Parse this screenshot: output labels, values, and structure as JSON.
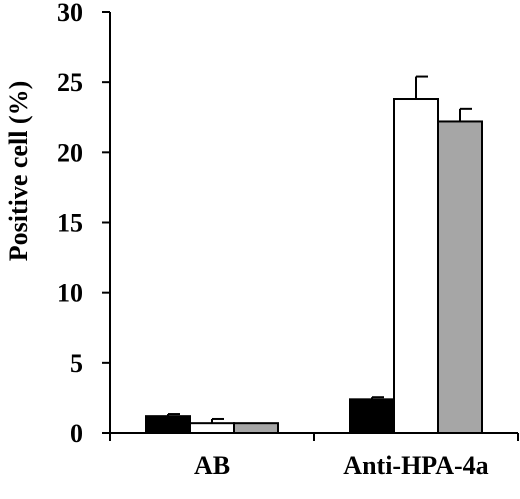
{
  "chart_data": {
    "type": "bar",
    "title": "",
    "xlabel": "",
    "ylabel": "Positive cell (%)",
    "ylim": [
      0,
      30
    ],
    "yticks": [
      0,
      5,
      10,
      15,
      20,
      25,
      30
    ],
    "categories": [
      "AB",
      "Anti-HPA-4a"
    ],
    "series": [
      {
        "color": "#000000",
        "values": [
          1.2,
          2.4
        ],
        "errors": [
          0.15,
          0.15
        ]
      },
      {
        "color": "#ffffff",
        "values": [
          0.7,
          23.8
        ],
        "errors": [
          0.3,
          1.6
        ]
      },
      {
        "color": "#a6a6a6",
        "values": [
          0.7,
          22.2
        ],
        "errors": [
          0.0,
          0.9
        ]
      }
    ],
    "grid": false,
    "legend": "none"
  }
}
